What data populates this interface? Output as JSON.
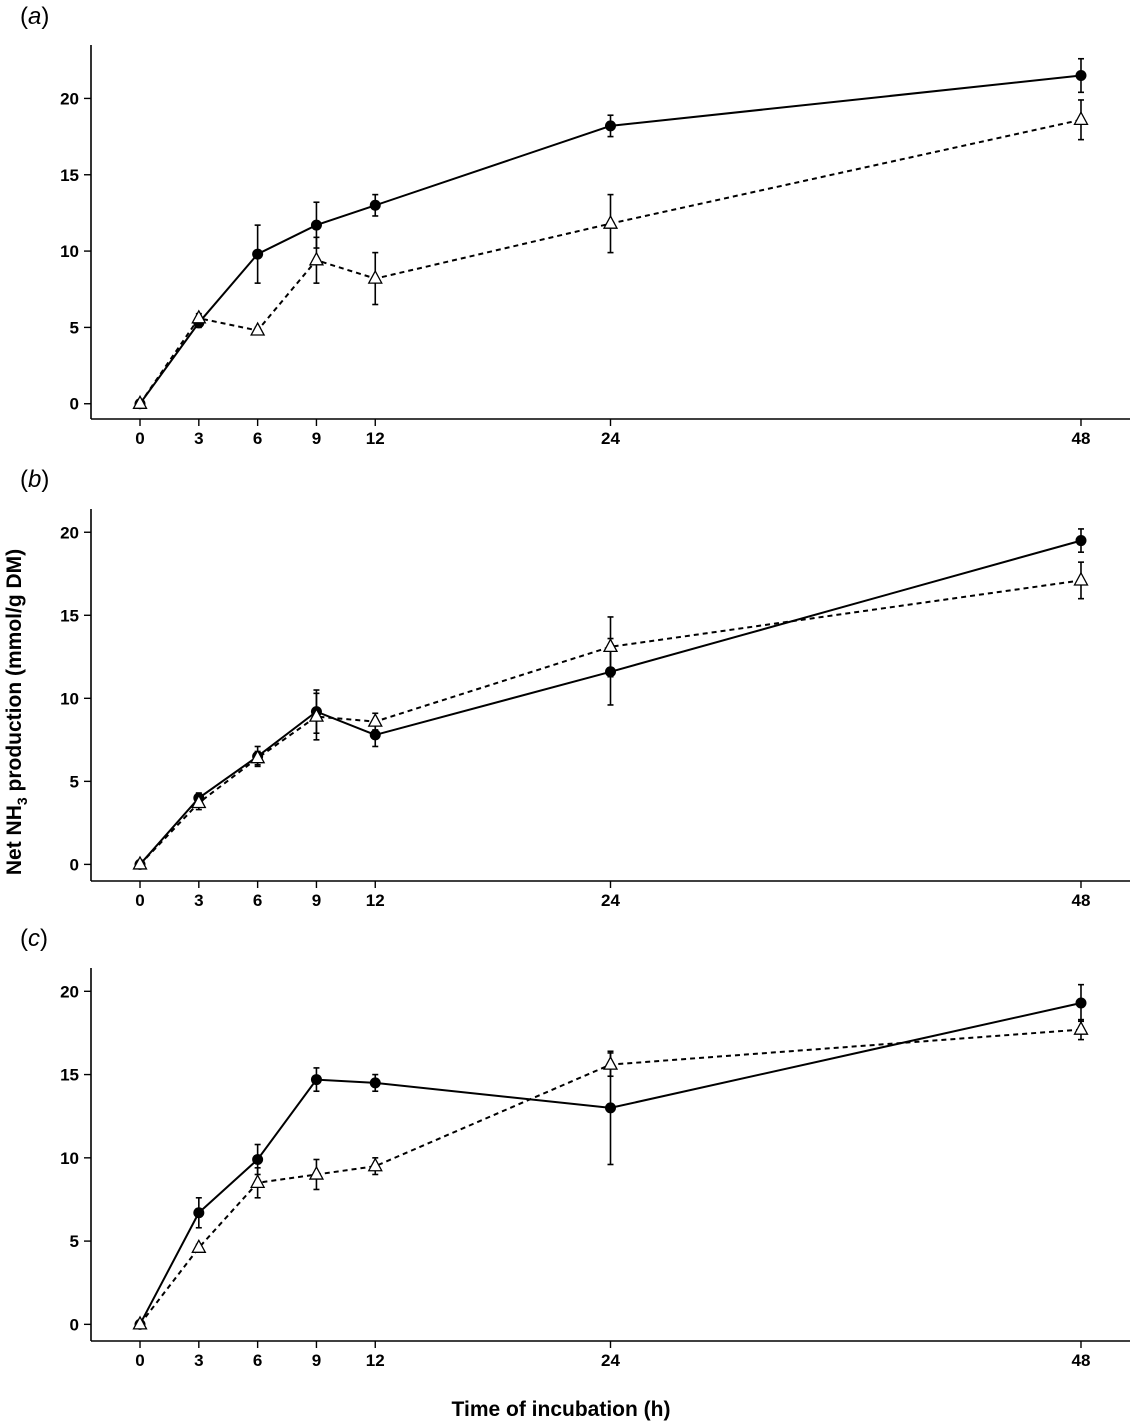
{
  "figure": {
    "ylabel": {
      "pre": "Net NH",
      "sub": "3",
      "post": " production (mmol/g DM)"
    },
    "xlabel": "Time of incubation (h)"
  },
  "chart_data": [
    {
      "type": "line",
      "panel": "a",
      "title": "",
      "x": [
        0,
        3,
        6,
        9,
        12,
        24,
        48
      ],
      "xticks": [
        "0",
        "3",
        "6",
        "9",
        "12",
        "24",
        "48"
      ],
      "yticks": [
        "0",
        "5",
        "10",
        "15",
        "20"
      ],
      "ylim": [
        -1,
        23.5
      ],
      "xlim": [
        -2.5,
        50.5
      ],
      "series": [
        {
          "marker": "filled-circle",
          "line": "solid",
          "values": [
            0,
            5.3,
            9.8,
            11.7,
            13.0,
            18.2,
            21.5
          ],
          "errors": [
            0.2,
            0.3,
            1.9,
            1.5,
            0.7,
            0.7,
            1.1
          ]
        },
        {
          "marker": "open-triangle",
          "line": "dashed",
          "values": [
            0,
            5.6,
            4.8,
            9.4,
            8.2,
            11.8,
            18.6
          ],
          "errors": [
            0.2,
            0.3,
            0.2,
            1.5,
            1.7,
            1.9,
            1.3
          ]
        }
      ]
    },
    {
      "type": "line",
      "panel": "b",
      "title": "",
      "x": [
        0,
        3,
        6,
        9,
        12,
        24,
        48
      ],
      "xticks": [
        "0",
        "3",
        "6",
        "9",
        "12",
        "24",
        "48"
      ],
      "yticks": [
        "0",
        "5",
        "10",
        "15",
        "20"
      ],
      "ylim": [
        -1,
        21.4
      ],
      "xlim": [
        -2.5,
        50.5
      ],
      "series": [
        {
          "marker": "filled-circle",
          "line": "solid",
          "values": [
            0,
            4.0,
            6.5,
            9.2,
            7.8,
            11.6,
            19.5
          ],
          "errors": [
            0.2,
            0.3,
            0.6,
            1.3,
            0.7,
            2.0,
            0.7
          ]
        },
        {
          "marker": "open-triangle",
          "line": "dashed",
          "values": [
            0,
            3.7,
            6.4,
            8.9,
            8.6,
            13.1,
            17.1
          ],
          "errors": [
            0.2,
            0.4,
            0.4,
            1.4,
            0.5,
            1.8,
            1.1
          ]
        }
      ]
    },
    {
      "type": "line",
      "panel": "c",
      "title": "",
      "x": [
        0,
        3,
        6,
        9,
        12,
        24,
        48
      ],
      "xticks": [
        "0",
        "3",
        "6",
        "9",
        "12",
        "24",
        "48"
      ],
      "yticks": [
        "0",
        "5",
        "10",
        "15",
        "20"
      ],
      "ylim": [
        -1,
        21.4
      ],
      "xlim": [
        -2.5,
        50.5
      ],
      "series": [
        {
          "marker": "filled-circle",
          "line": "solid",
          "values": [
            0,
            6.7,
            9.9,
            14.7,
            14.5,
            13.0,
            19.3
          ],
          "errors": [
            0.2,
            0.9,
            0.9,
            0.7,
            0.5,
            3.4,
            1.1
          ]
        },
        {
          "marker": "open-triangle",
          "line": "dashed",
          "values": [
            0,
            4.6,
            8.5,
            9.0,
            9.5,
            15.6,
            17.7
          ],
          "errors": [
            0.2,
            0.2,
            0.9,
            0.9,
            0.5,
            0.7,
            0.6
          ]
        }
      ]
    }
  ]
}
